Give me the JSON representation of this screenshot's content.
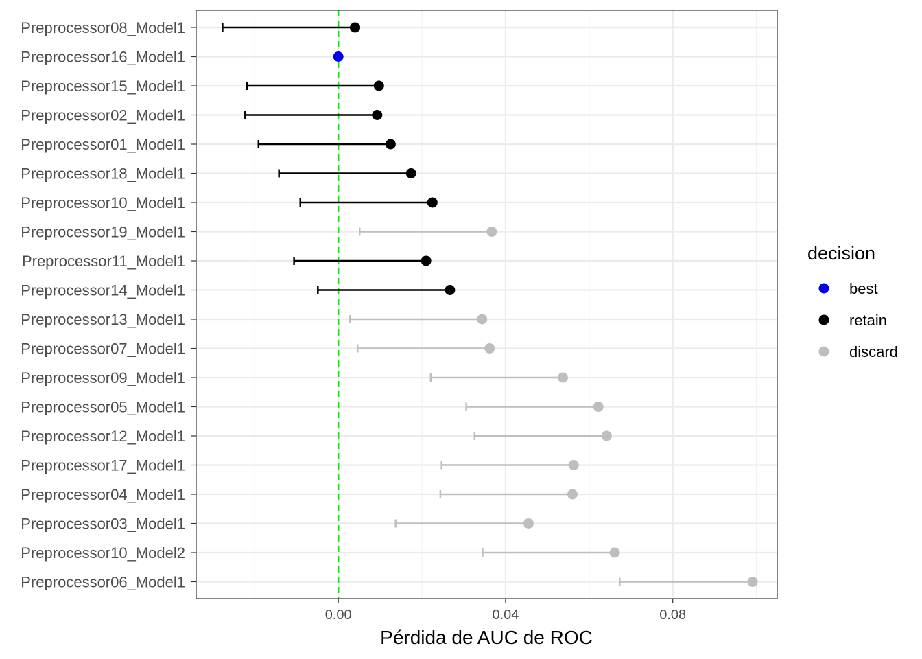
{
  "chart_data": {
    "type": "scatter",
    "subtype": "point-range",
    "xlabel": "Pérdida de AUC de ROC",
    "ylabel": "",
    "xlim": [
      -0.034,
      0.105
    ],
    "xticks": [
      0.0,
      0.04,
      0.08
    ],
    "xtick_labels": [
      "0.00",
      "0.04",
      "0.08"
    ],
    "reference_line": {
      "x": 0.0,
      "color": "#00ee00",
      "style": "dashed"
    },
    "grid": true,
    "legend": {
      "title": "decision",
      "position": "right",
      "entries": [
        {
          "label": "best",
          "color": "#0000ee"
        },
        {
          "label": "retain",
          "color": "#000000"
        },
        {
          "label": "discard",
          "color": "#bebebe"
        }
      ]
    },
    "rows": [
      {
        "label": "Preprocessor08_Model1",
        "estimate": 0.004,
        "lower": -0.0277,
        "decision": "retain"
      },
      {
        "label": "Preprocessor16_Model1",
        "estimate": 0.0,
        "lower": null,
        "decision": "best"
      },
      {
        "label": "Preprocessor15_Model1",
        "estimate": 0.0097,
        "lower": -0.0219,
        "decision": "retain"
      },
      {
        "label": "Preprocessor02_Model1",
        "estimate": 0.0093,
        "lower": -0.0223,
        "decision": "retain"
      },
      {
        "label": "Preprocessor01_Model1",
        "estimate": 0.0125,
        "lower": -0.0191,
        "decision": "retain"
      },
      {
        "label": "Preprocessor18_Model1",
        "estimate": 0.0174,
        "lower": -0.0142,
        "decision": "retain"
      },
      {
        "label": "Preprocessor10_Model1",
        "estimate": 0.0225,
        "lower": -0.0091,
        "decision": "retain"
      },
      {
        "label": "Preprocessor19_Model1",
        "estimate": 0.0367,
        "lower": 0.0051,
        "decision": "discard"
      },
      {
        "label": "Preprocessor11_Model1",
        "estimate": 0.021,
        "lower": -0.0106,
        "decision": "retain"
      },
      {
        "label": "Preprocessor14_Model1",
        "estimate": 0.0267,
        "lower": -0.0049,
        "decision": "retain"
      },
      {
        "label": "Preprocessor13_Model1",
        "estimate": 0.0344,
        "lower": 0.0028,
        "decision": "discard"
      },
      {
        "label": "Preprocessor07_Model1",
        "estimate": 0.0362,
        "lower": 0.0046,
        "decision": "discard"
      },
      {
        "label": "Preprocessor09_Model1",
        "estimate": 0.0537,
        "lower": 0.0221,
        "decision": "discard"
      },
      {
        "label": "Preprocessor05_Model1",
        "estimate": 0.0622,
        "lower": 0.0306,
        "decision": "discard"
      },
      {
        "label": "Preprocessor12_Model1",
        "estimate": 0.0642,
        "lower": 0.0326,
        "decision": "discard"
      },
      {
        "label": "Preprocessor17_Model1",
        "estimate": 0.0563,
        "lower": 0.0247,
        "decision": "discard"
      },
      {
        "label": "Preprocessor04_Model1",
        "estimate": 0.056,
        "lower": 0.0244,
        "decision": "discard"
      },
      {
        "label": "Preprocessor03_Model1",
        "estimate": 0.0455,
        "lower": 0.0137,
        "decision": "discard"
      },
      {
        "label": "Preprocessor10_Model2",
        "estimate": 0.0661,
        "lower": 0.0345,
        "decision": "discard"
      },
      {
        "label": "Preprocessor06_Model1",
        "estimate": 0.0991,
        "lower": 0.0673,
        "decision": "discard"
      }
    ]
  }
}
